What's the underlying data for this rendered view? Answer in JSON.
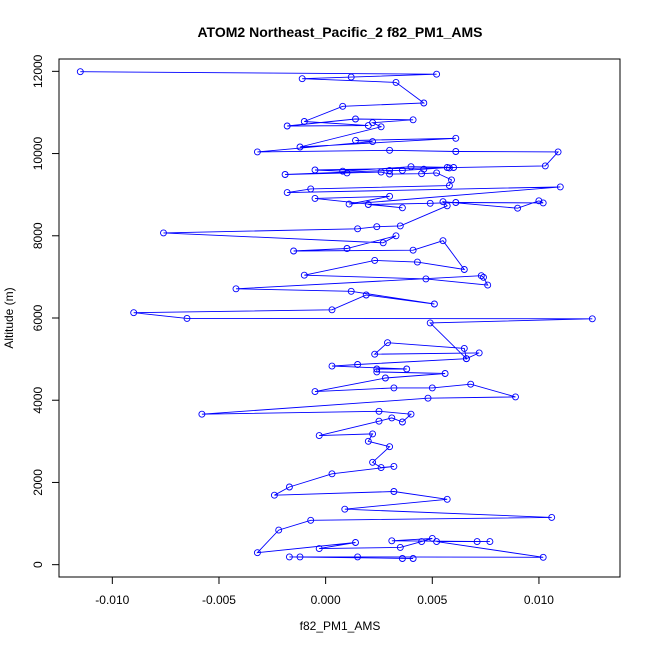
{
  "chart_data": {
    "type": "line",
    "title": "ATOM2 Northeast_Pacific_2 f82_PM1_AMS",
    "xlabel": "f82_PM1_AMS",
    "ylabel": "Altitude (m)",
    "xlim": [
      -0.0125,
      0.0138
    ],
    "ylim": [
      -300,
      12300
    ],
    "x_ticks": [
      -0.01,
      -0.005,
      0.0,
      0.005,
      0.01
    ],
    "x_tick_labels": [
      "-0.010",
      "-0.005",
      "0.000",
      "0.005",
      "0.010"
    ],
    "y_ticks": [
      0,
      2000,
      4000,
      6000,
      8000,
      10000,
      12000
    ],
    "y_tick_labels": [
      "0",
      "2000",
      "4000",
      "6000",
      "8000",
      "10000",
      "12000"
    ],
    "grid": false,
    "line_color": "#0000ff",
    "marker": "open-circle",
    "series": [
      {
        "points": [
          [
            0.0036,
            150
          ],
          [
            0.0041,
            150
          ],
          [
            -0.0017,
            190
          ],
          [
            -0.0012,
            190
          ],
          [
            0.0015,
            190
          ],
          [
            0.0102,
            180
          ],
          [
            0.0052,
            560
          ],
          [
            0.0071,
            560
          ],
          [
            0.0077,
            560
          ],
          [
            0.0031,
            580
          ],
          [
            0.005,
            640
          ],
          [
            0.0045,
            560
          ],
          [
            0.0035,
            420
          ],
          [
            -0.0003,
            390
          ],
          [
            0.0014,
            540
          ],
          [
            -0.0032,
            290
          ],
          [
            -0.0022,
            840
          ],
          [
            -0.0007,
            1080
          ],
          [
            0.0106,
            1150
          ],
          [
            0.0009,
            1350
          ],
          [
            0.0057,
            1590
          ],
          [
            0.0032,
            1780
          ],
          [
            -0.0024,
            1690
          ],
          [
            -0.0017,
            1890
          ],
          [
            0.0003,
            2210
          ],
          [
            0.0032,
            2390
          ],
          [
            0.0026,
            2360
          ],
          [
            0.0022,
            2490
          ],
          [
            0.003,
            2870
          ],
          [
            0.002,
            3000
          ],
          [
            0.0022,
            3180
          ],
          [
            -0.0003,
            3140
          ],
          [
            0.0025,
            3490
          ],
          [
            0.0031,
            3570
          ],
          [
            0.0036,
            3470
          ],
          [
            0.004,
            3660
          ],
          [
            0.0025,
            3730
          ],
          [
            -0.0058,
            3660
          ],
          [
            0.0048,
            4050
          ],
          [
            0.0089,
            4080
          ],
          [
            0.0068,
            4390
          ],
          [
            0.005,
            4300
          ],
          [
            0.0032,
            4300
          ],
          [
            -0.0005,
            4210
          ],
          [
            0.0028,
            4540
          ],
          [
            0.0056,
            4650
          ],
          [
            0.0024,
            4690
          ],
          [
            0.0024,
            4760
          ],
          [
            0.0038,
            4760
          ],
          [
            0.0003,
            4830
          ],
          [
            0.0015,
            4870
          ],
          [
            0.0066,
            5010
          ],
          [
            0.0072,
            5150
          ],
          [
            0.0023,
            5120
          ],
          [
            0.0029,
            5400
          ],
          [
            0.0065,
            5260
          ],
          [
            0.0066,
            5010
          ],
          [
            0.0049,
            5880
          ],
          [
            0.0125,
            5980
          ],
          [
            -0.0065,
            5990
          ],
          [
            -0.009,
            6130
          ],
          [
            0.0003,
            6200
          ],
          [
            0.0019,
            6560
          ],
          [
            0.0051,
            6340
          ],
          [
            0.0012,
            6650
          ],
          [
            -0.0042,
            6710
          ],
          [
            0.0073,
            7030
          ],
          [
            0.0074,
            6990
          ],
          [
            0.0076,
            6800
          ],
          [
            0.0047,
            6950
          ],
          [
            -0.001,
            7040
          ],
          [
            0.0023,
            7400
          ],
          [
            0.0043,
            7360
          ],
          [
            0.0065,
            7180
          ],
          [
            0.0055,
            7880
          ],
          [
            0.0041,
            7650
          ],
          [
            -0.0015,
            7630
          ],
          [
            0.001,
            7690
          ],
          [
            0.0033,
            8000
          ],
          [
            0.0027,
            7830
          ],
          [
            -0.0076,
            8070
          ],
          [
            0.0015,
            8170
          ],
          [
            0.0024,
            8220
          ],
          [
            0.0035,
            8240
          ],
          [
            0.0057,
            8730
          ],
          [
            0.0055,
            8830
          ],
          [
            0.009,
            8670
          ],
          [
            0.01,
            8850
          ],
          [
            0.0102,
            8800
          ],
          [
            0.0061,
            8810
          ],
          [
            0.0049,
            8790
          ],
          [
            0.002,
            8760
          ],
          [
            0.0036,
            8680
          ],
          [
            -0.0005,
            8910
          ],
          [
            0.003,
            8960
          ],
          [
            0.0011,
            8770
          ],
          [
            0.011,
            9190
          ],
          [
            -0.0018,
            9050
          ],
          [
            -0.0007,
            9140
          ],
          [
            0.0058,
            9220
          ],
          [
            0.0059,
            9360
          ],
          [
            0.0052,
            9530
          ],
          [
            0.0045,
            9510
          ],
          [
            0.003,
            9500
          ],
          [
            0.0026,
            9550
          ],
          [
            0.001,
            9530
          ],
          [
            -0.0019,
            9490
          ],
          [
            0.003,
            9590
          ],
          [
            0.0036,
            9590
          ],
          [
            0.0046,
            9620
          ],
          [
            0.0057,
            9660
          ],
          [
            0.0058,
            9650
          ],
          [
            0.006,
            9660
          ],
          [
            0.004,
            9680
          ],
          [
            0.0008,
            9570
          ],
          [
            -0.0005,
            9600
          ],
          [
            0.0103,
            9700
          ],
          [
            0.0109,
            10040
          ],
          [
            0.0061,
            10050
          ],
          [
            0.003,
            10080
          ],
          [
            -0.0032,
            10040
          ],
          [
            0.0022,
            10290
          ],
          [
            0.0014,
            10320
          ],
          [
            0.0061,
            10370
          ],
          [
            -0.0012,
            10160
          ],
          [
            0.0026,
            10650
          ],
          [
            0.0022,
            10750
          ],
          [
            0.0041,
            10820
          ],
          [
            0.0014,
            10840
          ],
          [
            -0.0018,
            10670
          ],
          [
            0.002,
            10680
          ],
          [
            -0.001,
            10780
          ],
          [
            0.0008,
            11150
          ],
          [
            0.0046,
            11230
          ],
          [
            0.0033,
            11730
          ],
          [
            -0.0011,
            11820
          ],
          [
            0.0012,
            11860
          ],
          [
            0.0052,
            11930
          ],
          [
            -0.0115,
            11990
          ]
        ]
      }
    ]
  }
}
